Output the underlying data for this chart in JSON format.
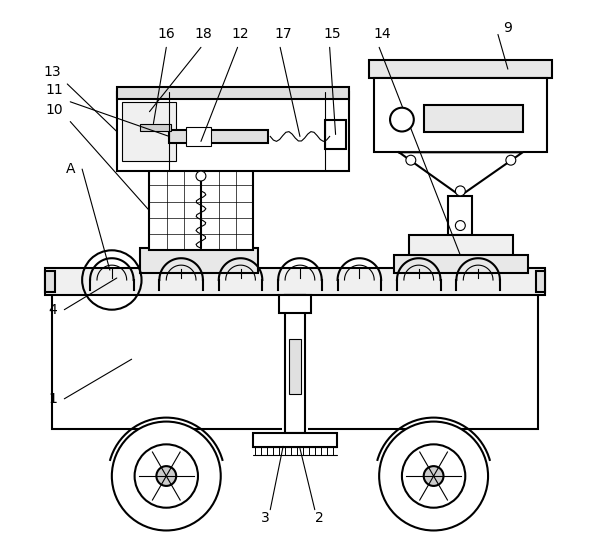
{
  "background_color": "#ffffff",
  "line_color": "#000000",
  "line_width": 1.5,
  "figsize": [
    5.89,
    5.59
  ],
  "dpi": 100
}
